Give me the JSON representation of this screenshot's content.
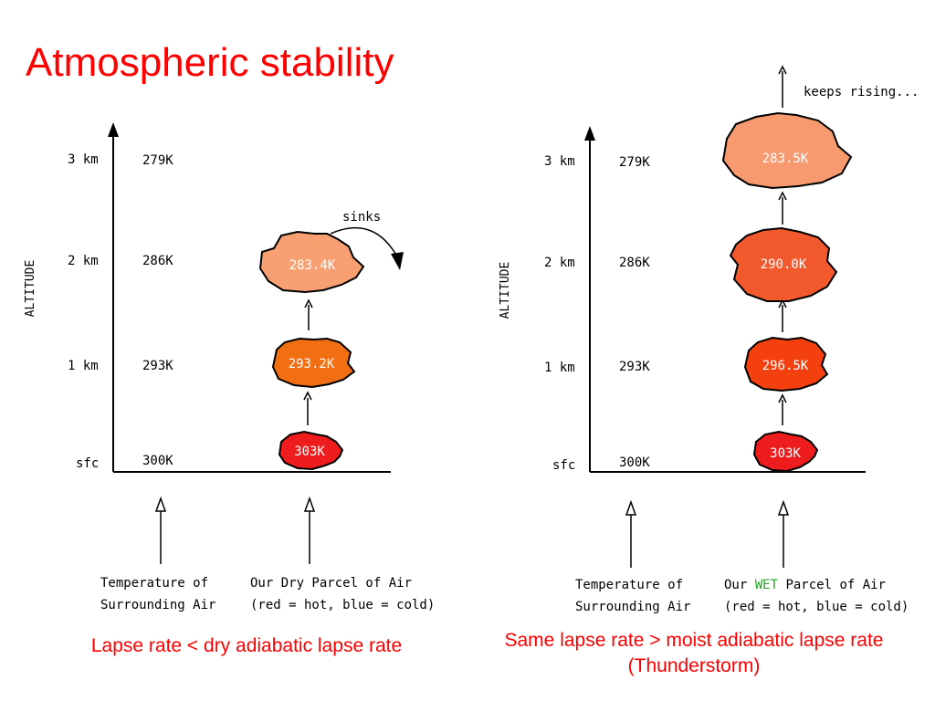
{
  "title": "Atmospheric stability",
  "colors": {
    "title": "#ff0000",
    "caption": "#ff0000",
    "parcel_303": "#ee1c1c",
    "parcel_296_5": "#f4400f",
    "parcel_293_2": "#f26e12",
    "parcel_290_0": "#f25a2e",
    "parcel_283_4": "#f8a071",
    "parcel_283_5": "#f89a70",
    "wet_word": "#22aa22"
  },
  "left_panel": {
    "axis_label": "ALTITUDE",
    "levels": [
      {
        "height": "3 km",
        "temp": "279K"
      },
      {
        "height": "2 km",
        "temp": "286K"
      },
      {
        "height": "1 km",
        "temp": "293K"
      },
      {
        "height": "sfc",
        "temp": "300K"
      }
    ],
    "parcels": [
      {
        "label": "303K"
      },
      {
        "label": "293.2K"
      },
      {
        "label": "283.4K"
      }
    ],
    "annotation": "sinks",
    "legend_env_1": "Temperature of",
    "legend_env_2": "Surrounding Air",
    "legend_parcel_1": "Our Dry Parcel of Air",
    "legend_parcel_2": "(red = hot, blue = cold)",
    "caption": "Lapse rate < dry adiabatic lapse rate"
  },
  "right_panel": {
    "axis_label": "ALTITUDE",
    "levels": [
      {
        "height": "3 km",
        "temp": "279K"
      },
      {
        "height": "2 km",
        "temp": "286K"
      },
      {
        "height": "1 km",
        "temp": "293K"
      },
      {
        "height": "sfc",
        "temp": "300K"
      }
    ],
    "parcels": [
      {
        "label": "303K"
      },
      {
        "label": "296.5K"
      },
      {
        "label": "290.0K"
      },
      {
        "label": "283.5K"
      }
    ],
    "annotation": "keeps rising...",
    "legend_env_1": "Temperature of",
    "legend_env_2": "Surrounding Air",
    "legend_parcel_prefix": "Our ",
    "legend_parcel_wet": "WET",
    "legend_parcel_suffix": " Parcel of Air",
    "legend_parcel_2": "(red = hot, blue = cold)",
    "caption_line1": "Same lapse rate > moist adiabatic lapse rate",
    "caption_line2": "(Thunderstorm)"
  }
}
